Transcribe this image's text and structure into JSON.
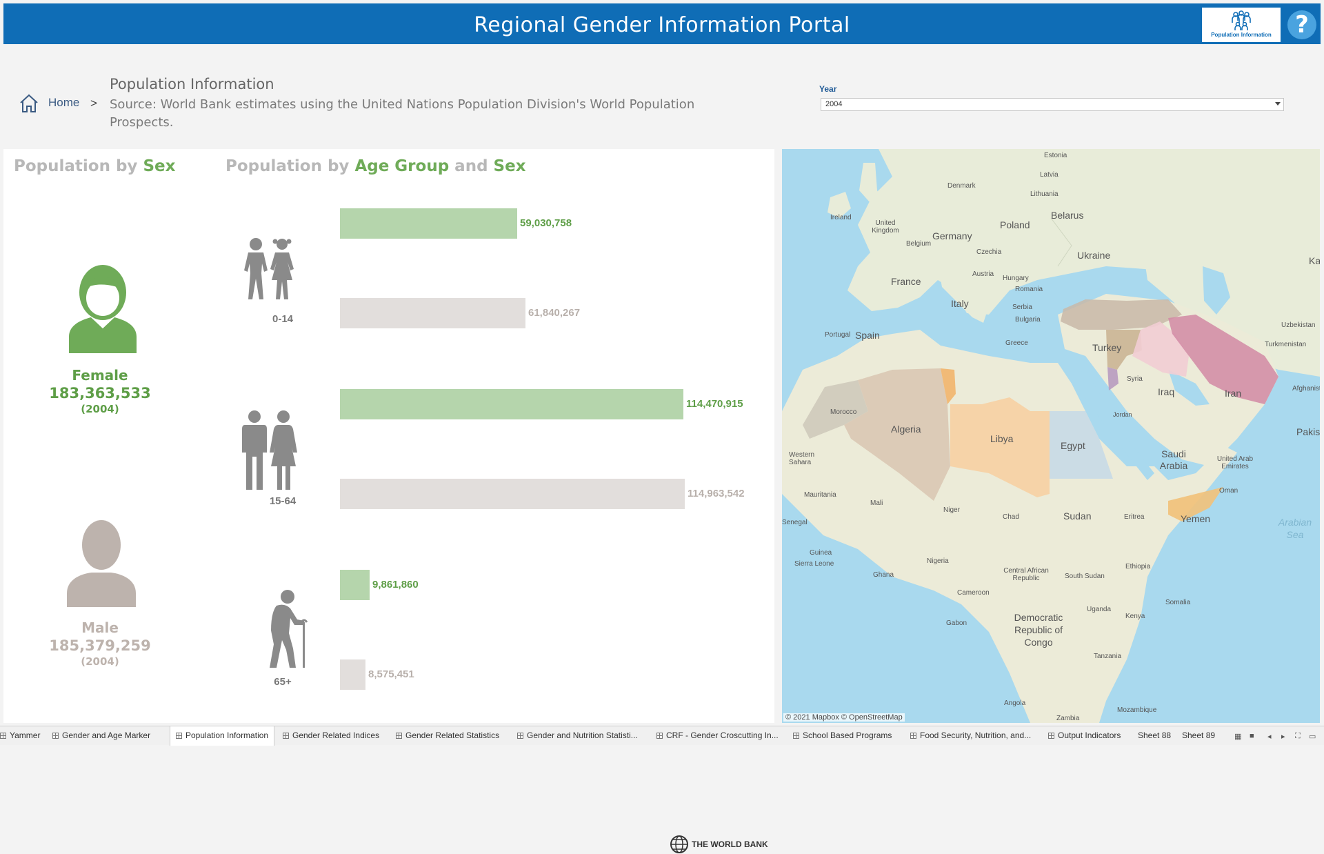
{
  "header": {
    "title": "Regional Gender Information Portal",
    "badge_label": "Population Information",
    "help_label": "?"
  },
  "breadcrumb": {
    "home_label": "Home",
    "separator": ">",
    "page_title": "Population Information",
    "source_text": "Source:   World Bank estimates using the United Nations Population Division's World Population Prospects."
  },
  "filter": {
    "label": "Year",
    "selected": "2004"
  },
  "population_by_sex": {
    "title_prefix": "Population by ",
    "title_highlight": "Sex",
    "female": {
      "label": "Female",
      "value": "183,363,533",
      "year": "(2004)"
    },
    "male": {
      "label": "Male",
      "value": "185,379,259",
      "year": "(2004)"
    }
  },
  "population_by_age": {
    "title_prefix": "Population by ",
    "title_hl1": "Age Group",
    "title_mid": " and ",
    "title_hl2": "Sex",
    "groups": [
      {
        "label": "0-14",
        "female": 59030758,
        "female_label": "59,030,758",
        "male": 61840267,
        "male_label": "61,840,267"
      },
      {
        "label": "15-64",
        "female": 114470915,
        "female_label": "114,470,915",
        "male": 114963542,
        "male_label": "114,963,542"
      },
      {
        "label": "65+",
        "female": 9861860,
        "female_label": "9,861,860",
        "male": 8575451,
        "male_label": "8,575,451"
      }
    ],
    "colors": {
      "female": "#b5d5ac",
      "male": "#e2dedc",
      "female_text": "#5e9e47",
      "male_text": "#b8b0ab"
    }
  },
  "logo": {
    "text": "THE WORLD BANK"
  },
  "map": {
    "labels": {
      "estonia": "Estonia",
      "latvia": "Latvia",
      "denmark": "Denmark",
      "lithuania": "Lithuania",
      "ireland": "Ireland",
      "uk": "United Kingdom",
      "belarus": "Belarus",
      "poland": "Poland",
      "germany": "Germany",
      "belgium": "Belgium",
      "czechia": "Czechia",
      "ukraine": "Ukraine",
      "austria": "Austria",
      "hungary": "Hungary",
      "france": "France",
      "romania": "Romania",
      "italy": "Italy",
      "serbia": "Serbia",
      "bulgaria": "Bulgaria",
      "portugal": "Portugal",
      "spain": "Spain",
      "greece": "Greece",
      "turkey": "Turkey",
      "uzbekistan": "Uzbekistan",
      "turkmenistan": "Turkmenistan",
      "syria": "Syria",
      "iraq": "Iraq",
      "iran": "Iran",
      "afghanistan": "Afghanist",
      "morocco": "Morocco",
      "algeria": "Algeria",
      "libya": "Libya",
      "egypt": "Egypt",
      "jordan": "Jordan",
      "saudi": "Saudi Arabia",
      "uae": "United Arab Emirates",
      "pakistan": "Pakis",
      "kaz": "Ka",
      "western_sahara": "Western Sahara",
      "mauritania": "Mauritania",
      "mali": "Mali",
      "niger": "Niger",
      "chad": "Chad",
      "sudan": "Sudan",
      "eritrea": "Eritrea",
      "oman": "Oman",
      "yemen": "Yemen",
      "senegal": "Senegal",
      "arabian_sea": "Arabian Sea",
      "guinea": "Guinea",
      "sierra_leone": "Sierra Leone",
      "nigeria": "Nigeria",
      "ghana": "Ghana",
      "car": "Central African Republic",
      "ethiopia": "Ethiopia",
      "south_sudan": "South Sudan",
      "cameroon": "Cameroon",
      "somalia": "Somalia",
      "uganda": "Uganda",
      "kenya": "Kenya",
      "gabon": "Gabon",
      "drc": "Democratic Republic of Congo",
      "tanzania": "Tanzania",
      "angola": "Angola",
      "zambia": "Zambia",
      "mozambique": "Mozambique"
    },
    "copyright": "© 2021 Mapbox © OpenStreetMap"
  },
  "tabs": [
    "Yammer",
    "Gender and Age Marker",
    "Population Information",
    "Gender Related Indices",
    "Gender Related Statistics",
    "Gender and Nutrition Statisti...",
    "CRF - Gender Croscutting In...",
    "School Based Programs",
    "Food Security, Nutrition, and...",
    "Output Indicators",
    "Sheet 88",
    "Sheet 89"
  ],
  "active_tab": "Population Information"
}
